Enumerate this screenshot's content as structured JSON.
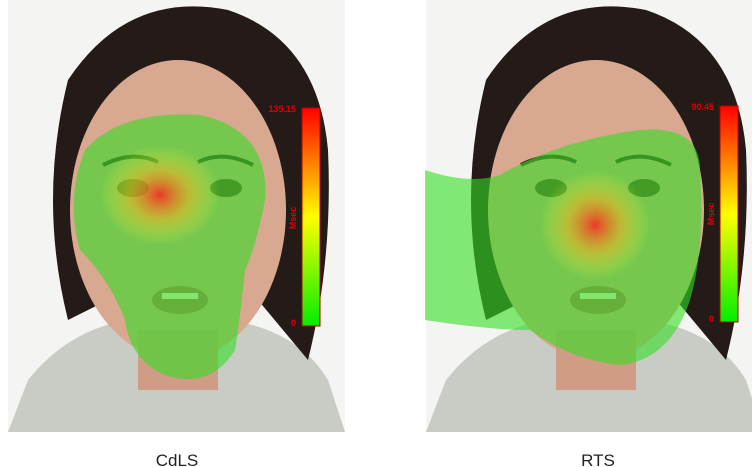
{
  "panels": [
    {
      "caption": "CdLS",
      "colorbar": {
        "max": 135.15,
        "min": 0,
        "unit": "Msec"
      }
    },
    {
      "caption": "RTS",
      "colorbar": {
        "max": 90.45,
        "min": 0,
        "unit": "Msec"
      }
    }
  ]
}
